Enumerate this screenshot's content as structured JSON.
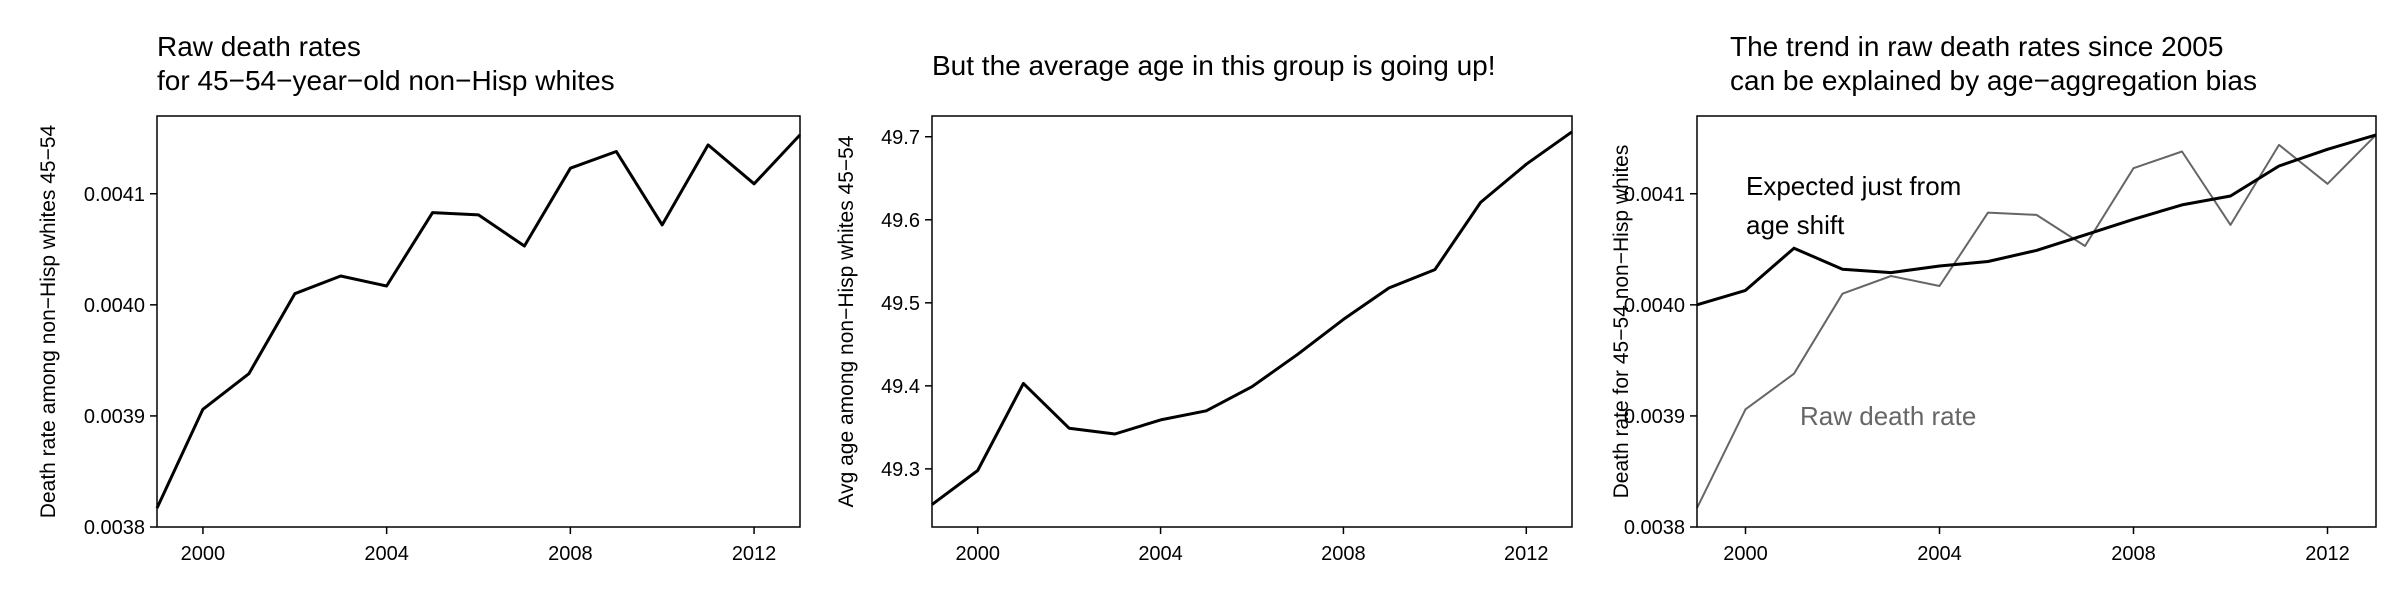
{
  "chart_data": [
    {
      "type": "line",
      "title": [
        "Raw death rates",
        "for 45−54−year−old non−Hisp whites"
      ],
      "xlabel": "",
      "ylabel": "Death rate among non−Hisp whites 45−54",
      "xlim": [
        1999,
        2013
      ],
      "ylim": [
        0.0038,
        0.00417
      ],
      "xticks": [
        2000,
        2004,
        2008,
        2012
      ],
      "xtick_labels": [
        "2000",
        "2004",
        "2008",
        "2012"
      ],
      "yticks": [
        0.0038,
        0.0039,
        0.004,
        0.0041
      ],
      "ytick_labels": [
        "0.0038",
        "0.0039",
        "0.0040",
        "0.0041"
      ],
      "grid": false,
      "series": [
        {
          "color": "#000000",
          "x": [
            1999,
            2000,
            2001,
            2002,
            2003,
            2004,
            2005,
            2006,
            2007,
            2008,
            2009,
            2010,
            2011,
            2012,
            2013
          ],
          "values": [
            0.003817,
            0.003906,
            0.003938,
            0.00401,
            0.004026,
            0.004017,
            0.004083,
            0.004081,
            0.004053,
            0.004123,
            0.004138,
            0.004072,
            0.004144,
            0.004109,
            0.004153
          ]
        }
      ],
      "annotations": []
    },
    {
      "type": "line",
      "title": [
        "But the average age in this group is going up!"
      ],
      "xlabel": "",
      "ylabel": "Avg age among non−Hisp whites 45−54",
      "xlim": [
        1999,
        2013
      ],
      "ylim": [
        49.23,
        49.725
      ],
      "xticks": [
        2000,
        2004,
        2008,
        2012
      ],
      "xtick_labels": [
        "2000",
        "2004",
        "2008",
        "2012"
      ],
      "yticks": [
        49.3,
        49.4,
        49.5,
        49.6,
        49.7
      ],
      "ytick_labels": [
        "49.3",
        "49.4",
        "49.5",
        "49.6",
        "49.7"
      ],
      "grid": false,
      "series": [
        {
          "color": "#000000",
          "x": [
            1999,
            2000,
            2001,
            2002,
            2003,
            2004,
            2005,
            2006,
            2007,
            2008,
            2009,
            2010,
            2011,
            2012,
            2013
          ],
          "values": [
            49.257,
            49.298,
            49.403,
            49.349,
            49.342,
            49.359,
            49.37,
            49.399,
            49.438,
            49.48,
            49.518,
            49.54,
            49.621,
            49.667,
            49.706
          ]
        }
      ],
      "annotations": []
    },
    {
      "type": "line",
      "title": [
        "The trend in raw death rates since 2005",
        "can be explained by age−aggregation bias"
      ],
      "xlabel": "",
      "ylabel": "Death rate for 45−54 non−Hisp whites",
      "xlim": [
        1999,
        2013
      ],
      "ylim": [
        0.0038,
        0.00417
      ],
      "xticks": [
        2000,
        2004,
        2008,
        2012
      ],
      "xtick_labels": [
        "2000",
        "2004",
        "2008",
        "2012"
      ],
      "yticks": [
        0.0038,
        0.0039,
        0.004,
        0.0041
      ],
      "ytick_labels": [
        "0.0038",
        "0.0039",
        "0.0040",
        "0.0041"
      ],
      "grid": false,
      "series": [
        {
          "color": "#000000",
          "x": [
            1999,
            2000,
            2001,
            2002,
            2003,
            2004,
            2005,
            2006,
            2007,
            2008,
            2009,
            2010,
            2011,
            2012,
            2013
          ],
          "values": [
            0.004,
            0.004013,
            0.004051,
            0.004032,
            0.004029,
            0.004035,
            0.004039,
            0.004049,
            0.004063,
            0.004077,
            0.00409,
            0.004098,
            0.004125,
            0.00414,
            0.004153
          ]
        },
        {
          "color": "#666666",
          "x": [
            1999,
            2000,
            2001,
            2002,
            2003,
            2004,
            2005,
            2006,
            2007,
            2008,
            2009,
            2010,
            2011,
            2012,
            2013
          ],
          "values": [
            0.003817,
            0.003906,
            0.003938,
            0.00401,
            0.004026,
            0.004017,
            0.004083,
            0.004081,
            0.004053,
            0.004123,
            0.004138,
            0.004072,
            0.004144,
            0.004109,
            0.004153
          ]
        }
      ],
      "annotations": [
        {
          "lines": [
            "Expected just from",
            "age shift"
          ],
          "color": "#000000"
        },
        {
          "lines": [
            "Raw death rate"
          ],
          "color": "#666666"
        }
      ]
    }
  ]
}
